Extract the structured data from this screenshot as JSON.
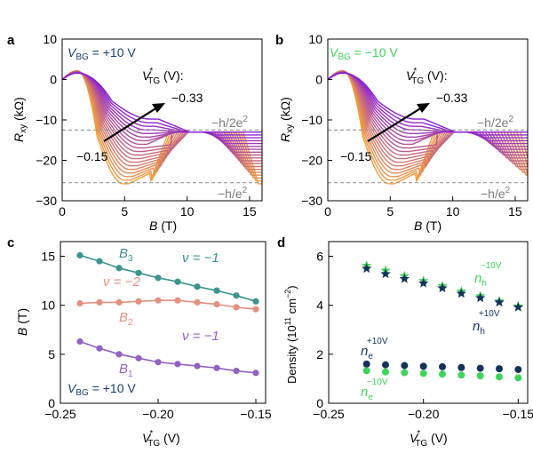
{
  "chart_data": [
    {
      "panel": "a",
      "type": "line",
      "title": "",
      "xlabel": "B (T)",
      "ylabel": "Rxy (kΩ)",
      "xlim": [
        0,
        16
      ],
      "ylim": [
        -30,
        10
      ],
      "xticks": [
        0,
        5,
        10,
        15
      ],
      "yticks": [
        -30,
        -20,
        -10,
        0,
        10
      ],
      "condition": "V_BG = +10 V",
      "legend_title": "V*_TG (V):",
      "arrow_start_label": "−0.15",
      "arrow_end_label": "−0.33",
      "hlines": [
        {
          "y": -13,
          "label": "−h/2e²"
        },
        {
          "y": -25.8,
          "label": "−h/e²"
        }
      ],
      "series_count": 19,
      "series_range": {
        "first_vtg": -0.15,
        "last_vtg": -0.33,
        "first_color": "#f5a03c",
        "last_color": "#8a1fd6"
      },
      "notes": "family of Hall resistance traces; plateau at −h/e² shrinks and Landau-level step shifts to higher B as V*_TG becomes more negative"
    },
    {
      "panel": "b",
      "type": "line",
      "title": "",
      "xlabel": "B (T)",
      "ylabel": "Rxy (kΩ)",
      "xlim": [
        0,
        16
      ],
      "ylim": [
        -30,
        10
      ],
      "xticks": [
        0,
        5,
        10,
        15
      ],
      "yticks": [
        -30,
        -20,
        -10,
        0,
        10
      ],
      "condition": "V_BG = −10 V",
      "legend_title": "V*_TG (V):",
      "arrow_start_label": "−0.15",
      "arrow_end_label": "−0.33",
      "hlines": [
        {
          "y": -13,
          "label": "−h/2e²"
        },
        {
          "y": -25.8,
          "label": "−h/e²"
        }
      ],
      "series_count": 19,
      "series_range": {
        "first_vtg": -0.15,
        "last_vtg": -0.33,
        "first_color": "#f5a03c",
        "last_color": "#8a1fd6"
      }
    },
    {
      "panel": "c",
      "type": "line",
      "xlabel": "V*_TG (V)",
      "ylabel": "B (T)",
      "xlim": [
        -0.25,
        -0.145
      ],
      "ylim": [
        0,
        16.5
      ],
      "xticks": [
        -0.25,
        -0.2,
        -0.15
      ],
      "xtick_labels": [
        "−0.25",
        "−0.20",
        "−0.15"
      ],
      "yticks": [
        0,
        5,
        10,
        15
      ],
      "condition": "V_BG = +10 V",
      "x": [
        -0.24,
        -0.23,
        -0.22,
        -0.21,
        -0.2,
        -0.19,
        -0.18,
        -0.17,
        -0.16,
        -0.15
      ],
      "series": [
        {
          "name": "B3",
          "label": "ν = −1",
          "color": "#3a958c",
          "values": [
            15.1,
            14.5,
            13.8,
            13.3,
            12.8,
            12.4,
            11.9,
            11.5,
            11.0,
            10.4
          ]
        },
        {
          "name": "B2",
          "label": "ν = −2",
          "color": "#e58f7f",
          "values": [
            10.2,
            10.3,
            10.3,
            10.4,
            10.5,
            10.5,
            10.3,
            10.1,
            9.8,
            9.6
          ]
        },
        {
          "name": "B1",
          "label": "ν = −1",
          "color": "#9361c2",
          "values": [
            6.3,
            5.6,
            5.0,
            4.6,
            4.2,
            4.0,
            3.8,
            3.6,
            3.3,
            3.1
          ]
        }
      ]
    },
    {
      "panel": "d",
      "type": "scatter",
      "xlabel": "V*_TG (V)",
      "ylabel": "Density (10¹¹ cm⁻²)",
      "xlim": [
        -0.25,
        -0.145
      ],
      "ylim": [
        0,
        6.6
      ],
      "xticks": [
        -0.25,
        -0.2,
        -0.15
      ],
      "xtick_labels": [
        "−0.25",
        "−0.20",
        "−0.15"
      ],
      "yticks": [
        0,
        2,
        4,
        6
      ],
      "x": [
        -0.23,
        -0.22,
        -0.21,
        -0.2,
        -0.19,
        -0.18,
        -0.17,
        -0.16,
        -0.15
      ],
      "series": [
        {
          "name": "n_h^{-10V}",
          "marker": "star",
          "color": "#3ed45c",
          "values": [
            5.62,
            5.42,
            5.2,
            5.0,
            4.79,
            4.57,
            4.38,
            4.17,
            3.96
          ]
        },
        {
          "name": "n_h^{+10V}",
          "marker": "star",
          "color": "#14325a",
          "values": [
            5.5,
            5.28,
            5.08,
            4.9,
            4.7,
            4.48,
            4.3,
            4.12,
            3.92
          ]
        },
        {
          "name": "n_e^{+10V}",
          "marker": "circle",
          "color": "#14325a",
          "values": [
            1.6,
            1.57,
            1.54,
            1.51,
            1.49,
            1.46,
            1.43,
            1.41,
            1.38
          ]
        },
        {
          "name": "n_e^{-10V}",
          "marker": "circle",
          "color": "#3ed45c",
          "values": [
            1.33,
            1.28,
            1.25,
            1.22,
            1.19,
            1.15,
            1.12,
            1.08,
            1.04
          ]
        }
      ]
    }
  ],
  "labels": {
    "panel_a": "a",
    "panel_b": "b",
    "panel_c": "c",
    "panel_d": "d",
    "vbg_pos_prefix": "V",
    "vbg_sub": "BG",
    "vbg_pos_value": " = +10 V",
    "vbg_neg_value": " = −10 V",
    "vtg_letter": "V",
    "vtg_star": "*",
    "vtg_sub": "TG",
    "vtg_legend_suffix": " (V):",
    "arrow_start": "−0.15",
    "arrow_end": "−0.33",
    "h2e2_label": "−h/2e",
    "he2_label": "−h/e",
    "superscript_2": "2",
    "rxy_letter": "R",
    "rxy_sub": "xy",
    "rxy_unit": " (kΩ)",
    "b_axis_letter": "B",
    "b_axis_unit": " (T)",
    "vtg_axis_unit": " (V)",
    "density_text": "Density (10",
    "density_exp": "11",
    "density_unit": " cm",
    "density_exp2": "−2",
    "density_close": ")",
    "c_b3": "B",
    "c_b3_sub": "3",
    "c_b2": "B",
    "c_b2_sub": "2",
    "c_b1": "B",
    "c_b1_sub": "1",
    "c_nu_m1_top": "ν = −1",
    "c_nu_m2": "ν = −2",
    "c_nu_m1_bottom": "ν = −1",
    "d_nh": "n",
    "d_nh_sub": "h",
    "d_ne": "n",
    "d_ne_sub": "e",
    "d_sup_neg": "−10V",
    "d_sup_pos": "+10V"
  },
  "colors": {
    "vbg_pos": "#1a3d6e",
    "vbg_neg": "#3ed45c",
    "axis": "#000000",
    "dash": "#999999",
    "hline_label": "#7a7a7a"
  }
}
